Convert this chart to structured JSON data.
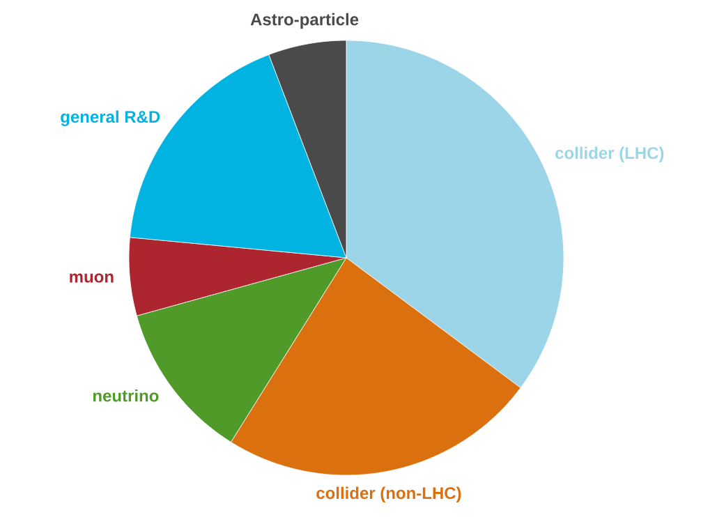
{
  "chart_data": {
    "type": "pie",
    "categories": [
      "collider (LHC)",
      "collider (non-LHC)",
      "neutrino",
      "muon",
      "general R&D",
      "Astro-particle"
    ],
    "values": [
      35.2,
      23.7,
      11.8,
      5.8,
      17.7,
      5.8
    ],
    "colors": [
      "#9dd5e8",
      "#db700f",
      "#4f9a28",
      "#ad252e",
      "#00b3e0",
      "#4a4a4a"
    ]
  }
}
